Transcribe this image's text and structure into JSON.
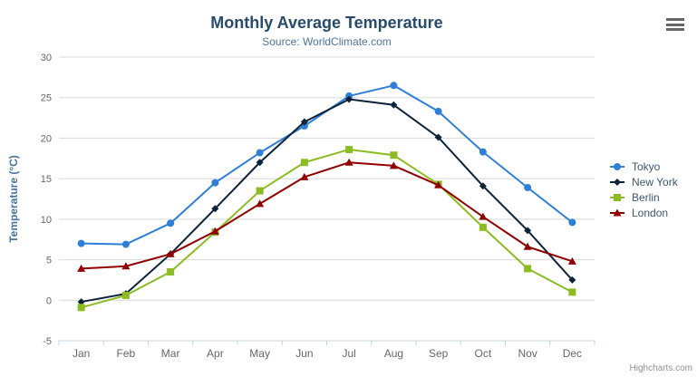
{
  "header": {
    "title": "Monthly Average Temperature",
    "subtitle": "Source: WorldClimate.com"
  },
  "credits": {
    "label": "Highcharts.com"
  },
  "menu": {
    "icon": "hamburger-icon"
  },
  "colors": {
    "title": "#274b6d",
    "subtitle": "#4d759e",
    "axis_labels": "#666666",
    "axis_title": "#4572a7",
    "gridline": "#d8d8d8",
    "axis_line": "#c0d0e0",
    "legend_text": "#3e576f",
    "credits_text": "#909090"
  },
  "chart_data": {
    "type": "line",
    "title": "Monthly Average Temperature",
    "subtitle": "Source: WorldClimate.com",
    "categories": [
      "Jan",
      "Feb",
      "Mar",
      "Apr",
      "May",
      "Jun",
      "Jul",
      "Aug",
      "Sep",
      "Oct",
      "Nov",
      "Dec"
    ],
    "series": [
      {
        "name": "Tokyo",
        "color": "#2f7ed8",
        "marker": "circle",
        "values": [
          7.0,
          6.9,
          9.5,
          14.5,
          18.2,
          21.5,
          25.2,
          26.5,
          23.3,
          18.3,
          13.9,
          9.6
        ]
      },
      {
        "name": "New York",
        "color": "#0d233a",
        "marker": "diamond",
        "values": [
          -0.2,
          0.8,
          5.7,
          11.3,
          17.0,
          22.0,
          24.8,
          24.1,
          20.1,
          14.1,
          8.6,
          2.5
        ]
      },
      {
        "name": "Berlin",
        "color": "#8bbc21",
        "marker": "square",
        "values": [
          -0.9,
          0.6,
          3.5,
          8.4,
          13.5,
          17.0,
          18.6,
          17.9,
          14.3,
          9.0,
          3.9,
          1.0
        ]
      },
      {
        "name": "London",
        "color": "#910000",
        "marker": "triangle",
        "values": [
          3.9,
          4.2,
          5.7,
          8.5,
          11.9,
          15.2,
          17.0,
          16.6,
          14.2,
          10.3,
          6.6,
          4.8
        ]
      }
    ],
    "xlabel": "",
    "ylabel": "Temperature (°C)",
    "ylim": [
      -5,
      30
    ],
    "ytick_step": 5,
    "yticks": [
      -5,
      0,
      5,
      10,
      15,
      20,
      25,
      30
    ],
    "grid": true,
    "legend_position": "right"
  }
}
